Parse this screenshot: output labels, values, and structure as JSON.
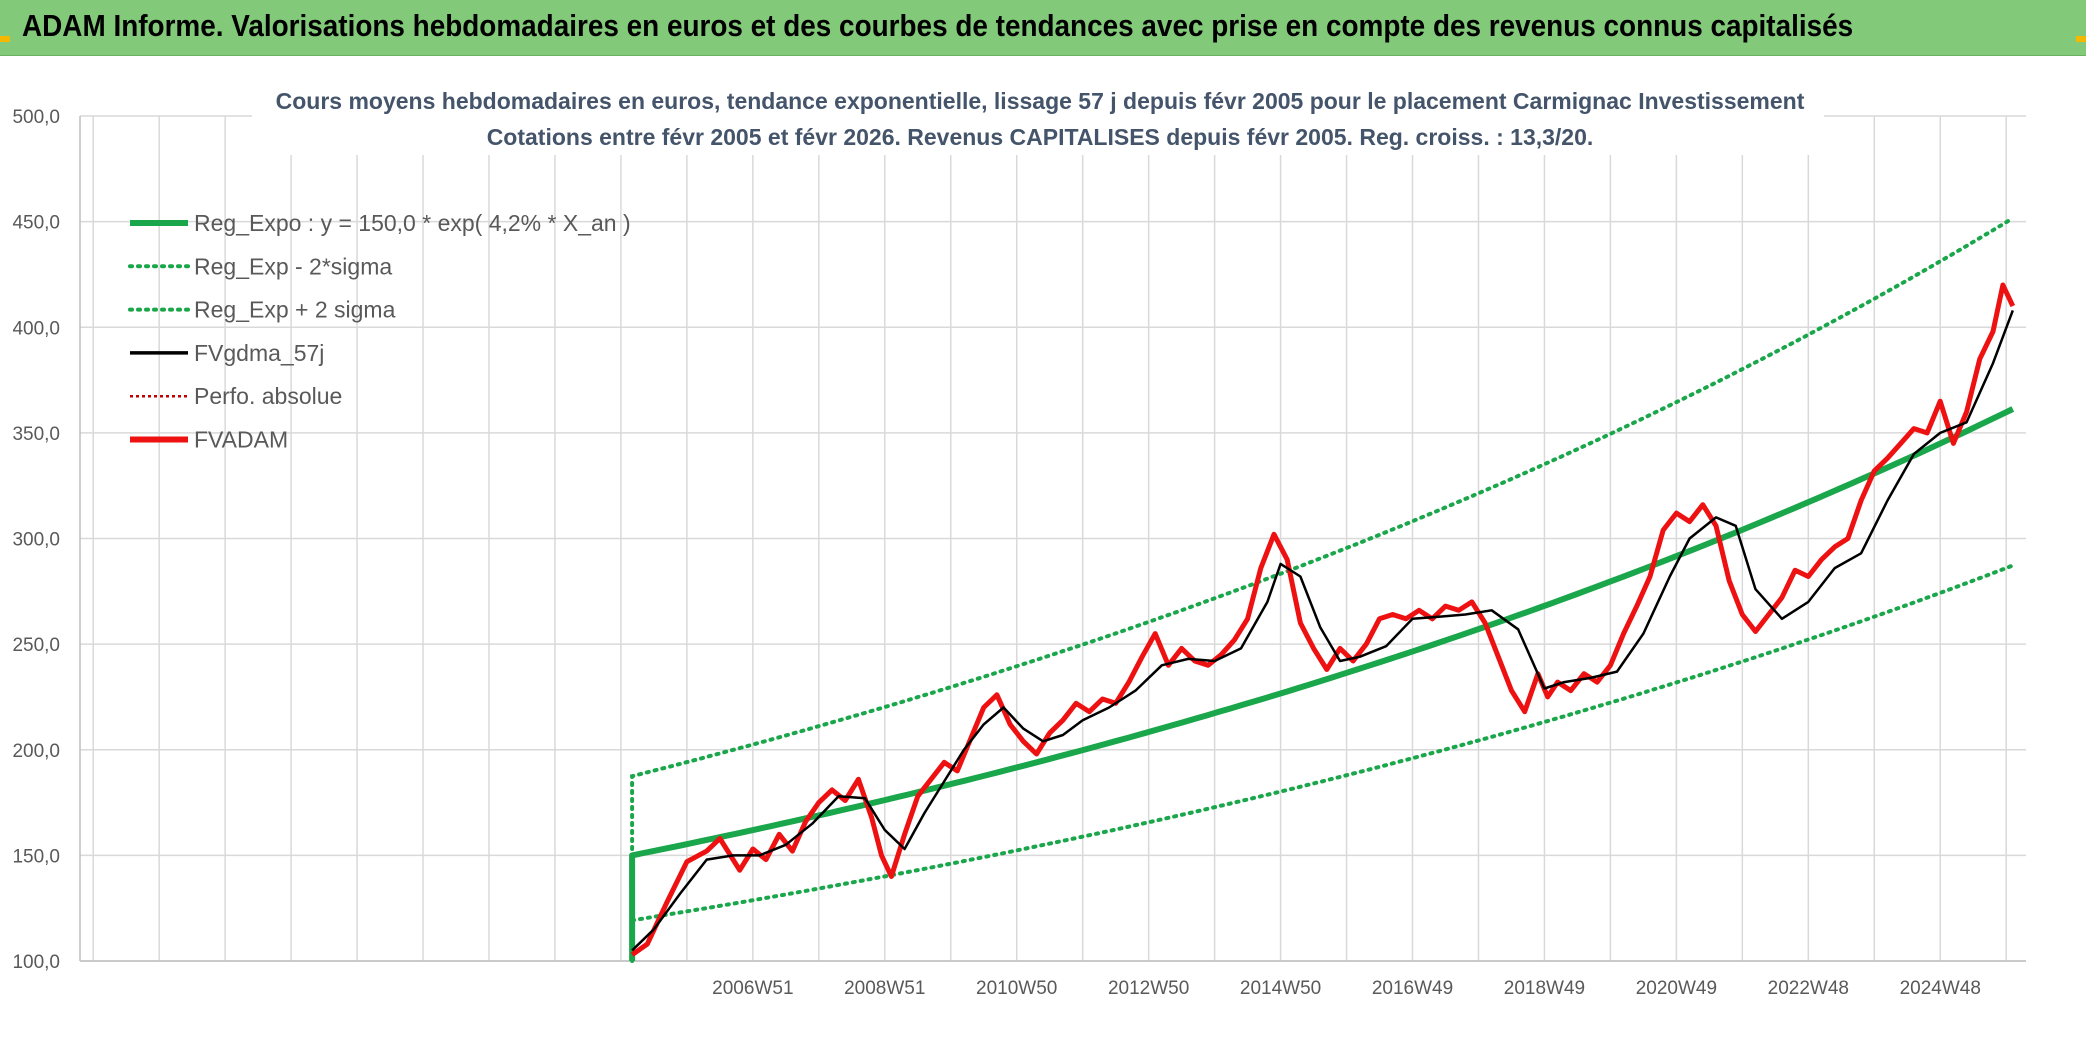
{
  "header": {
    "title": "ADAM Informe. Valorisations hebdomadaires en euros et des courbes de tendances avec prise en compte des revenus connus capitalisés"
  },
  "colors": {
    "header_bg": "#83c97a",
    "regression": "#1aa64a",
    "smoothing": "#000000",
    "price": "#ee1111",
    "grid": "#d9d9d9"
  },
  "chart_data": {
    "type": "line",
    "title": "Cours moyens hebdomadaires en euros, tendance exponentielle, lissage 57 j depuis févr 2005 pour le placement Carmignac Investissement",
    "subtitle": "Cotations entre févr 2005 et févr 2026. Revenus CAPITALISES depuis févr 2005. Reg. croiss. : 13,3/20.",
    "ylim": [
      100,
      500
    ],
    "yticks": [
      "100,0",
      "150,0",
      "200,0",
      "250,0",
      "300,0",
      "350,0",
      "400,0",
      "450,0",
      "500,0"
    ],
    "xlim": [
      1996.8,
      2026.3
    ],
    "xticks": [
      {
        "label": "2006W51",
        "x": 2007.0
      },
      {
        "label": "2008W51",
        "x": 2009.0
      },
      {
        "label": "2010W50",
        "x": 2011.0
      },
      {
        "label": "2012W50",
        "x": 2013.0
      },
      {
        "label": "2014W50",
        "x": 2015.0
      },
      {
        "label": "2016W49",
        "x": 2017.0
      },
      {
        "label": "2018W49",
        "x": 2019.0
      },
      {
        "label": "2020W49",
        "x": 2021.0
      },
      {
        "label": "2022W48",
        "x": 2023.0
      },
      {
        "label": "2024W48",
        "x": 2025.0
      }
    ],
    "grid": true,
    "legend_position": "top-left",
    "legend": [
      {
        "label": "Reg_Expo : y = 150,0 * exp( 4,2% *  X_an )",
        "style": "solid-thick",
        "color": "#1aa64a"
      },
      {
        "label": "Reg_Exp - 2*sigma",
        "style": "dotted",
        "color": "#1aa64a"
      },
      {
        "label": "Reg_Exp + 2 sigma",
        "style": "dotted",
        "color": "#1aa64a"
      },
      {
        "label": "FVgdma_57j",
        "style": "solid",
        "color": "#000000"
      },
      {
        "label": "Perfo. absolue",
        "style": "dotted-thin",
        "color": "#c00000"
      },
      {
        "label": "FVADAM",
        "style": "solid-thick",
        "color": "#ee1111"
      }
    ],
    "regression": {
      "start_x": 2005.17,
      "end_x": 2026.1,
      "a": 150.0,
      "rate": 0.042,
      "upper_factor": 1.25,
      "lower_factor": 0.795
    },
    "series": [
      {
        "name": "FVADAM",
        "x": [
          2005.17,
          2005.4,
          2005.7,
          2006.0,
          2006.3,
          2006.5,
          2006.8,
          2007.0,
          2007.2,
          2007.4,
          2007.6,
          2007.8,
          2008.0,
          2008.2,
          2008.4,
          2008.6,
          2008.8,
          2008.95,
          2009.1,
          2009.3,
          2009.5,
          2009.7,
          2009.9,
          2010.1,
          2010.3,
          2010.5,
          2010.7,
          2010.9,
          2011.1,
          2011.3,
          2011.5,
          2011.7,
          2011.9,
          2012.1,
          2012.3,
          2012.5,
          2012.7,
          2012.9,
          2013.1,
          2013.3,
          2013.5,
          2013.7,
          2013.9,
          2014.1,
          2014.3,
          2014.5,
          2014.7,
          2014.9,
          2015.1,
          2015.3,
          2015.5,
          2015.7,
          2015.9,
          2016.1,
          2016.3,
          2016.5,
          2016.7,
          2016.9,
          2017.1,
          2017.3,
          2017.5,
          2017.7,
          2017.9,
          2018.1,
          2018.3,
          2018.5,
          2018.7,
          2018.9,
          2019.05,
          2019.2,
          2019.4,
          2019.6,
          2019.8,
          2020.0,
          2020.2,
          2020.4,
          2020.6,
          2020.8,
          2021.0,
          2021.2,
          2021.4,
          2021.6,
          2021.8,
          2022.0,
          2022.2,
          2022.4,
          2022.6,
          2022.8,
          2023.0,
          2023.2,
          2023.4,
          2023.6,
          2023.8,
          2024.0,
          2024.2,
          2024.4,
          2024.6,
          2024.8,
          2025.0,
          2025.2,
          2025.4,
          2025.6,
          2025.8,
          2025.95,
          2026.1
        ],
        "values": [
          103,
          108,
          128,
          147,
          152,
          158,
          143,
          153,
          148,
          160,
          152,
          166,
          175,
          181,
          176,
          186,
          168,
          150,
          140,
          160,
          178,
          186,
          194,
          190,
          205,
          220,
          226,
          212,
          204,
          198,
          208,
          214,
          222,
          218,
          224,
          222,
          232,
          244,
          255,
          240,
          248,
          242,
          240,
          245,
          252,
          262,
          286,
          302,
          290,
          260,
          248,
          238,
          248,
          242,
          250,
          262,
          264,
          262,
          266,
          262,
          268,
          266,
          270,
          260,
          244,
          228,
          218,
          236,
          225,
          232,
          228,
          236,
          232,
          240,
          255,
          268,
          282,
          304,
          312,
          308,
          316,
          306,
          280,
          264,
          256,
          264,
          272,
          285,
          282,
          290,
          296,
          300,
          318,
          332,
          338,
          345,
          352,
          350,
          365,
          345,
          360,
          385,
          398,
          420,
          410
        ],
        "color": "#ee1111"
      },
      {
        "name": "FVgdma_57j",
        "x": [
          2005.17,
          2005.5,
          2005.9,
          2006.3,
          2006.7,
          2007.1,
          2007.5,
          2007.9,
          2008.3,
          2008.7,
          2009.0,
          2009.3,
          2009.6,
          2009.9,
          2010.2,
          2010.5,
          2010.8,
          2011.1,
          2011.4,
          2011.7,
          2012.0,
          2012.4,
          2012.8,
          2013.2,
          2013.6,
          2014.0,
          2014.4,
          2014.8,
          2015.0,
          2015.3,
          2015.6,
          2015.9,
          2016.2,
          2016.6,
          2017.0,
          2017.4,
          2017.8,
          2018.2,
          2018.6,
          2019.0,
          2019.3,
          2019.7,
          2020.1,
          2020.5,
          2020.9,
          2021.2,
          2021.6,
          2021.9,
          2022.2,
          2022.6,
          2023.0,
          2023.4,
          2023.8,
          2024.2,
          2024.6,
          2025.0,
          2025.4,
          2025.8,
          2026.1
        ],
        "values": [
          105,
          115,
          132,
          148,
          150,
          150,
          155,
          165,
          178,
          177,
          162,
          153,
          170,
          185,
          200,
          212,
          220,
          210,
          204,
          207,
          214,
          220,
          228,
          240,
          243,
          242,
          248,
          270,
          288,
          282,
          258,
          242,
          244,
          249,
          262,
          263,
          264,
          266,
          257,
          229,
          232,
          234,
          237,
          255,
          282,
          300,
          310,
          306,
          276,
          262,
          270,
          286,
          293,
          318,
          340,
          350,
          355,
          383,
          408
        ],
        "color": "#000000"
      }
    ]
  }
}
